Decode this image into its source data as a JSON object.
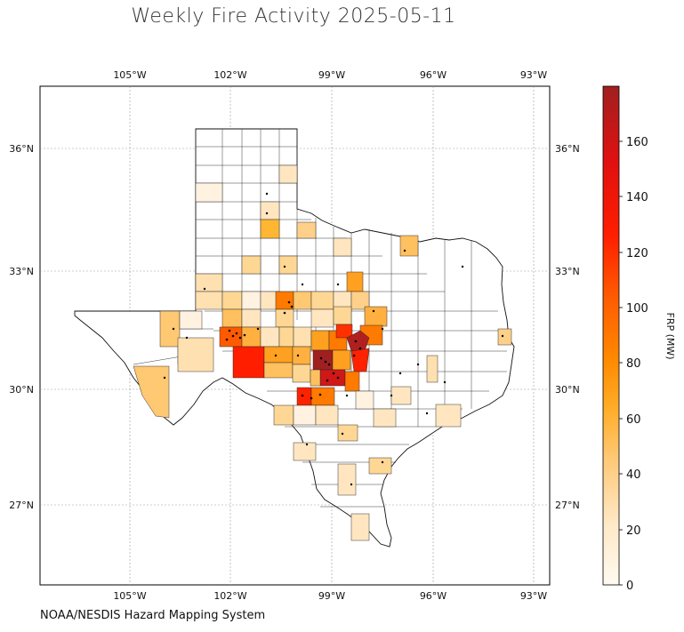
{
  "title": "Weekly Fire Activity 2025-05-11",
  "credit": "NOAA/NESDIS Hazard Mapping System",
  "colorbar": {
    "label": "FRP (MW)",
    "ticks": [
      "0",
      "20",
      "40",
      "60",
      "80",
      "100",
      "120",
      "140",
      "160"
    ],
    "range": [
      0,
      180
    ],
    "colors": [
      "#fffaf0",
      "#ffe9c8",
      "#ffc978",
      "#ffae2a",
      "#ff8a00",
      "#ff5a00",
      "#ff1e00",
      "#e01010",
      "#a02020"
    ]
  },
  "map": {
    "region": "Texas",
    "lon_labels": [
      "105°W",
      "102°W",
      "99°W",
      "96°W",
      "93°W"
    ],
    "lat_labels": [
      "36°N",
      "33°N",
      "30°N",
      "27°N"
    ],
    "lon_range": [
      -107.7,
      -92.6
    ],
    "lat_range": [
      24.7,
      36.9
    ],
    "gridlines": true
  },
  "chart_data": {
    "type": "choropleth",
    "title": "Weekly Fire Activity 2025-05-11",
    "value_label": "FRP (MW)",
    "value_range": [
      0,
      180
    ],
    "hot_counties": [
      {
        "lon": -101.5,
        "lat": 30.7,
        "frp": 125
      },
      {
        "lon": -102.0,
        "lat": 31.3,
        "frp": 100
      },
      {
        "lon": -98.2,
        "lat": 30.9,
        "frp": 160
      },
      {
        "lon": -98.9,
        "lat": 30.8,
        "frp": 170
      },
      {
        "lon": -98.5,
        "lat": 31.3,
        "frp": 110
      },
      {
        "lon": -98.0,
        "lat": 30.9,
        "frp": 120
      },
      {
        "lon": -99.7,
        "lat": 29.7,
        "frp": 120
      },
      {
        "lon": -100.3,
        "lat": 32.4,
        "frp": 90
      },
      {
        "lon": -97.7,
        "lat": 31.4,
        "frp": 90
      },
      {
        "lon": -98.3,
        "lat": 30.4,
        "frp": 100
      }
    ]
  }
}
